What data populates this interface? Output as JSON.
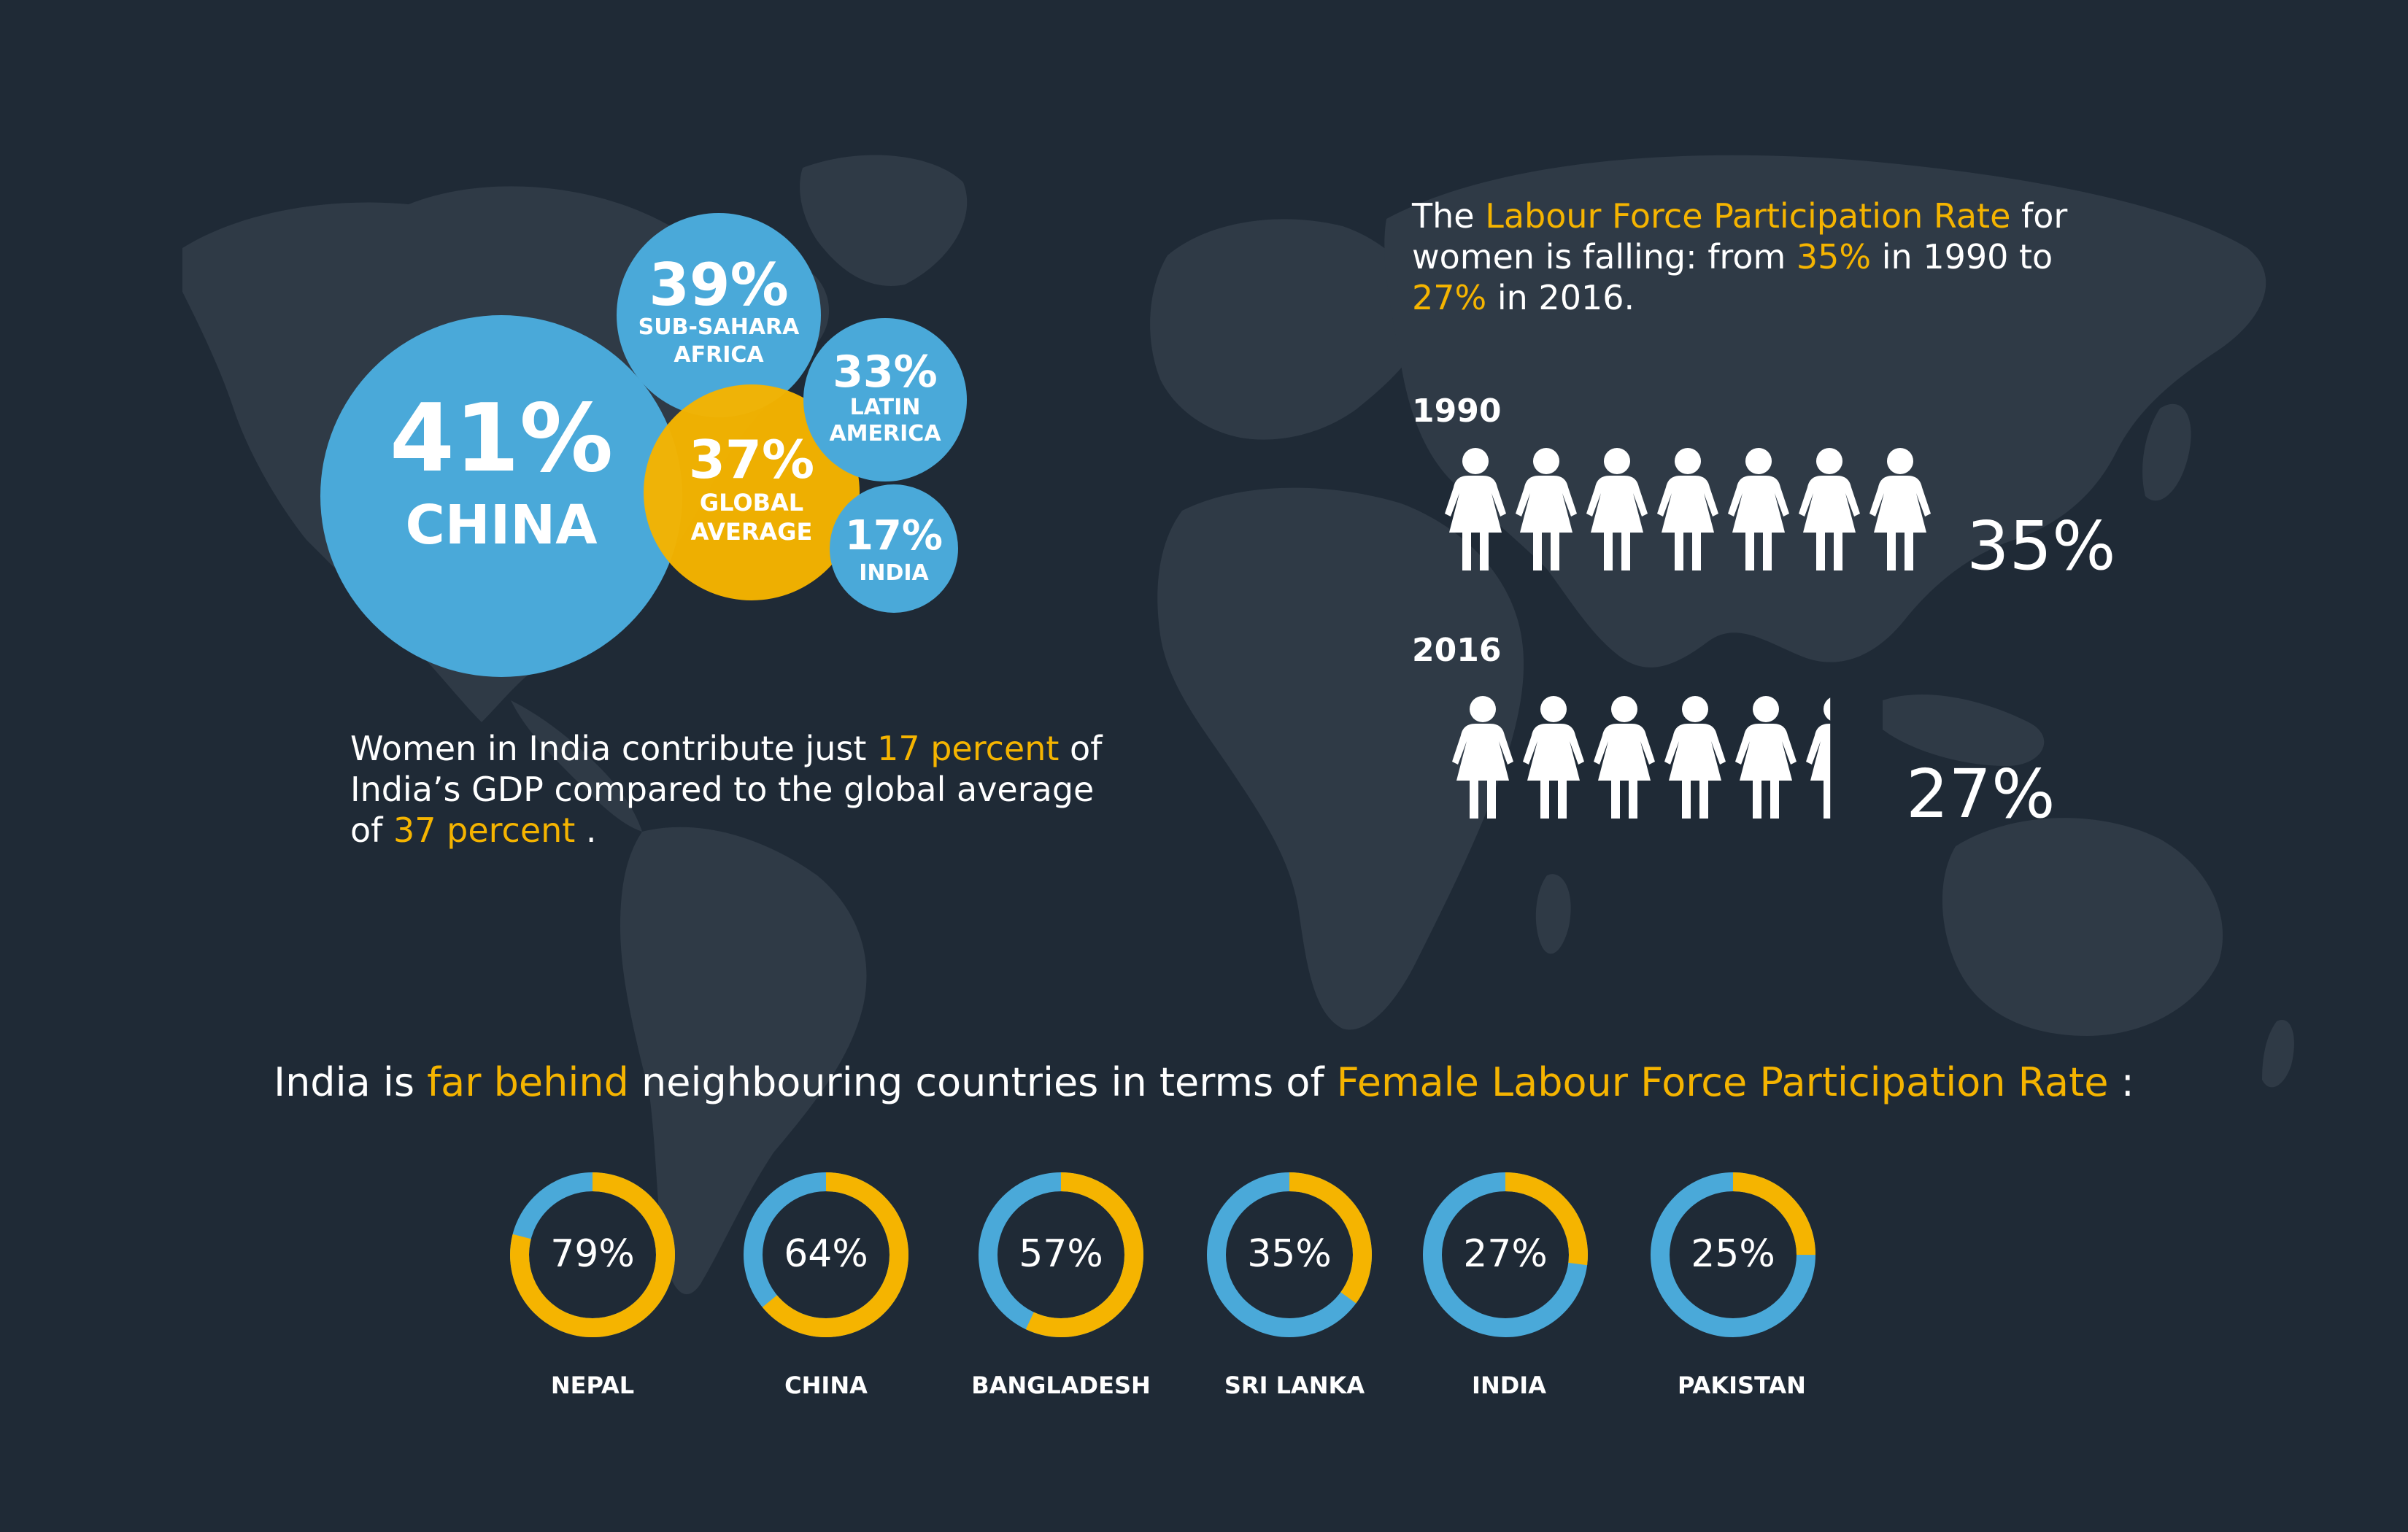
{
  "colors": {
    "background": "#1f2a36",
    "map": "#2f3a46",
    "blue": "#4aa9d9",
    "yellow": "#f5b400",
    "text": "#ffffff"
  },
  "gdp_bubbles": [
    {
      "value": "41%",
      "label": "CHINA",
      "color": "#4aa9d9"
    },
    {
      "value": "39%",
      "label_lines": [
        "SUB-SAHARA",
        "AFRICA"
      ],
      "color": "#4aa9d9"
    },
    {
      "value": "37%",
      "label_lines": [
        "GLOBAL",
        "AVERAGE"
      ],
      "color": "#f5b400"
    },
    {
      "value": "33%",
      "label_lines": [
        "LATIN",
        "AMERICA"
      ],
      "color": "#4aa9d9"
    },
    {
      "value": "17%",
      "label_lines": [
        "INDIA"
      ],
      "color": "#4aa9d9"
    }
  ],
  "gdp_text": {
    "part1": "Women in India contribute just ",
    "hl1": "17 percent",
    "part2": " of India’s GDP compared to the global average of ",
    "hl2": "37 percent",
    "part3": " ."
  },
  "lfpr_text": {
    "part1": "The ",
    "hl1": "Labour Force Participation Rate",
    "part2": " for women is falling: from ",
    "hl2": "35%",
    "part3": " in 1990 to ",
    "hl3": "27%",
    "part4": " in 2016."
  },
  "pictograms": [
    {
      "year": "1990",
      "pct": "35%",
      "figures": 7,
      "last_fraction": 1.0
    },
    {
      "year": "2016",
      "pct": "27%",
      "figures": 6,
      "last_fraction": 0.4
    }
  ],
  "headline": {
    "part1": "India is ",
    "hl1": "far behind",
    "part2": " neighbouring countries in terms of ",
    "hl2": "Female Labour Force Participation Rate",
    "part3": " :"
  },
  "donuts": [
    {
      "country": "NEPAL",
      "label": "79%",
      "value": 79
    },
    {
      "country": "CHINA",
      "label": "64%",
      "value": 64
    },
    {
      "country": "BANGLADESH",
      "label": "57%",
      "value": 57
    },
    {
      "country": "SRI LANKA",
      "label": "35%",
      "value": 35
    },
    {
      "country": "INDIA",
      "label": "27%",
      "value": 27
    },
    {
      "country": "PAKISTAN",
      "label": "25%",
      "value": 25
    }
  ]
}
